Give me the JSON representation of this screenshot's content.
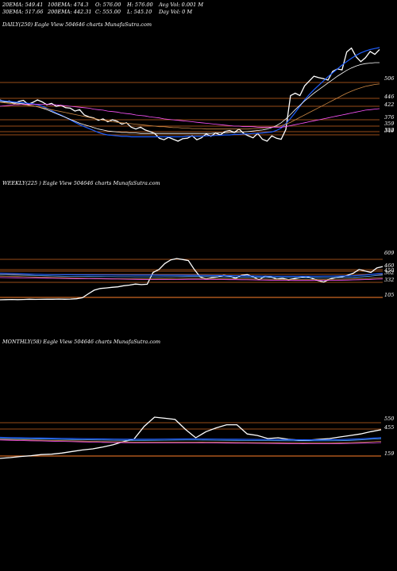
{
  "header": {
    "row1": [
      "20EMA: 549.41",
      "100EMA: 474.3",
      "O: 576.00",
      "H: 576.00",
      "Avg Vol: 0.001 M"
    ],
    "row2": [
      "30EMA: 517.66",
      "200EMA: 442.31",
      "C: 555.00",
      "L: 545.10",
      "Day Vol: 0  M"
    ]
  },
  "chart_data": [
    {
      "type": "line",
      "title": "DAILY(250) Eagle  View  504646  charts MunafaSutra.com",
      "level_labels": [
        "506",
        "446",
        "422",
        "376",
        "359",
        "352",
        "349"
      ],
      "level_lines": [
        506,
        446,
        422,
        376,
        359,
        352,
        349
      ],
      "series": [
        {
          "color": "#ffffff",
          "values": [
            441,
            437,
            439,
            433,
            438,
            440,
            432,
            436,
            441,
            437,
            431,
            434,
            428,
            430,
            425,
            424,
            418,
            421,
            410,
            406,
            404,
            399,
            402,
            396,
            400,
            397,
            391,
            394,
            385,
            381,
            385,
            379,
            376,
            372,
            362,
            359,
            364,
            360,
            356,
            361,
            362,
            367,
            359,
            363,
            371,
            366,
            373,
            369,
            376,
            378,
            374,
            381,
            372,
            367,
            363,
            372,
            360,
            356,
            367,
            362,
            360,
            380,
            450,
            455,
            450,
            470,
            480,
            490,
            487,
            485,
            482,
            500,
            505,
            503,
            540,
            548,
            530,
            520,
            528,
            541,
            535,
            545
          ]
        },
        {
          "color": "#1f5fff",
          "values": [
            440,
            439,
            438,
            437,
            436,
            435,
            434,
            433,
            431,
            428,
            424,
            419,
            414,
            410,
            405,
            400,
            395,
            390,
            386,
            382,
            378,
            374,
            371,
            369,
            368,
            367,
            366,
            366,
            365,
            365,
            365,
            365,
            365,
            365,
            365,
            365,
            365,
            365,
            365,
            365,
            366,
            366,
            366,
            366,
            367,
            367,
            368,
            368,
            369,
            369,
            370,
            370,
            371,
            371,
            372,
            372,
            373,
            374,
            375,
            378,
            383,
            392,
            403,
            415,
            428,
            441,
            452,
            462,
            471,
            480,
            489,
            497,
            505,
            513,
            520,
            527,
            533,
            538,
            542,
            545,
            547,
            549
          ]
        },
        {
          "color": "#ffffff",
          "values": [
            438,
            437,
            436,
            435,
            434,
            433,
            431,
            429,
            427,
            424,
            421,
            417,
            413,
            409,
            405,
            401,
            397,
            393,
            390,
            387,
            384,
            381,
            379,
            377,
            376,
            375,
            374,
            374,
            373,
            373,
            372,
            372,
            372,
            372,
            372,
            372,
            372,
            372,
            372,
            372,
            372,
            372,
            372,
            372,
            372,
            372,
            373,
            373,
            373,
            374,
            374,
            375,
            375,
            376,
            377,
            378,
            379,
            381,
            384,
            388,
            394,
            402,
            411,
            421,
            430,
            439,
            447,
            455,
            462,
            469,
            476,
            483,
            490,
            496,
            502,
            507,
            511,
            514,
            516,
            517,
            518,
            518
          ]
        },
        {
          "color": "#cc8844",
          "values": [
            436,
            435,
            434,
            433,
            432,
            431,
            430,
            429,
            427,
            425,
            423,
            421,
            419,
            417,
            415,
            413,
            411,
            409,
            407,
            405,
            403,
            401,
            399,
            398,
            396,
            395,
            394,
            393,
            392,
            391,
            390,
            389,
            388,
            387,
            386,
            386,
            385,
            384,
            384,
            383,
            383,
            382,
            382,
            382,
            381,
            381,
            381,
            381,
            381,
            381,
            381,
            381,
            381,
            381,
            382,
            382,
            383,
            384,
            385,
            386,
            388,
            391,
            395,
            400,
            405,
            410,
            415,
            420,
            425,
            430,
            435,
            440,
            445,
            450,
            455,
            459,
            463,
            466,
            469,
            471,
            473,
            474
          ]
        },
        {
          "color": "#ff55ff",
          "values": [
            428,
            429,
            430,
            431,
            431,
            432,
            432,
            432,
            432,
            432,
            432,
            431,
            431,
            430,
            429,
            428,
            427,
            426,
            425,
            424,
            422,
            421,
            420,
            418,
            417,
            416,
            414,
            413,
            412,
            410,
            409,
            408,
            406,
            405,
            404,
            402,
            401,
            400,
            399,
            398,
            397,
            396,
            395,
            394,
            393,
            392,
            391,
            390,
            389,
            388,
            387,
            387,
            386,
            386,
            386,
            385,
            385,
            385,
            385,
            385,
            385,
            386,
            388,
            390,
            392,
            394,
            396,
            398,
            400,
            402,
            404,
            406,
            408,
            410,
            412,
            414,
            416,
            418,
            420,
            421,
            422,
            423
          ]
        }
      ]
    },
    {
      "type": "line",
      "title": "WEEKLY(225                                  ) Eagle  View  504646  charts MunafaSutra.com",
      "level_labels": [
        "609",
        "460",
        "450",
        "362",
        "332",
        "105"
      ],
      "level_lines": [
        609,
        460,
        450,
        362,
        332,
        105
      ],
      "series": [
        {
          "color": "#ffffff",
          "values": [
            110,
            112,
            114,
            112,
            114,
            117,
            115,
            116,
            118,
            117,
            120,
            118,
            120,
            124,
            138,
            190,
            240,
            262,
            270,
            278,
            285,
            300,
            308,
            322,
            315,
            320,
            480,
            520,
            600,
            650,
            668,
            655,
            640,
            520,
            420,
            390,
            410,
            420,
            440,
            430,
            400,
            440,
            450,
            420,
            380,
            430,
            420,
            390,
            400,
            380,
            395,
            410,
            425,
            400,
            370,
            350,
            390,
            410,
            420,
            440,
            470,
            520,
            500,
            480,
            540,
            560
          ]
        },
        {
          "color": "#1f5fff",
          "values": [
            470,
            468,
            466,
            463,
            460,
            458,
            455,
            453,
            451,
            450,
            450,
            449,
            449,
            448,
            448,
            447,
            447,
            446,
            446,
            446,
            445,
            445,
            445,
            444,
            444,
            444,
            444,
            443,
            443,
            443,
            443,
            443,
            442,
            442,
            441,
            440,
            439,
            438,
            437,
            436,
            435,
            434,
            433,
            432,
            431,
            430,
            430,
            429,
            429,
            429,
            428,
            428,
            428,
            429,
            429,
            430,
            430,
            431,
            432,
            433,
            435,
            440,
            445,
            452,
            460,
            465
          ]
        },
        {
          "color": "#55aaff",
          "values": [
            450,
            448,
            446,
            444,
            442,
            440,
            438,
            436,
            434,
            432,
            430,
            428,
            427,
            426,
            425,
            424,
            423,
            423,
            422,
            422,
            421,
            421,
            421,
            420,
            420,
            420,
            420,
            420,
            421,
            421,
            422,
            423,
            424,
            424,
            424,
            423,
            422,
            421,
            420,
            419,
            418,
            417,
            416,
            415,
            414,
            413,
            412,
            411,
            410,
            410,
            409,
            409,
            408,
            408,
            408,
            409,
            409,
            410,
            411,
            412,
            414,
            418,
            423,
            430,
            438,
            445
          ]
        },
        {
          "color": "#cc8844",
          "values": [
            430,
            428,
            426,
            424,
            422,
            420,
            418,
            416,
            414,
            412,
            410,
            408,
            406,
            404,
            402,
            400,
            398,
            396,
            395,
            394,
            394,
            394,
            394,
            394,
            394,
            394,
            395,
            396,
            397,
            398,
            399,
            400,
            400,
            400,
            400,
            399,
            398,
            397,
            396,
            395,
            394,
            393,
            392,
            391,
            390,
            389,
            388,
            387,
            386,
            385,
            385,
            385,
            385,
            385,
            386,
            386,
            387,
            388,
            389,
            390,
            392,
            395,
            398,
            402,
            406,
            410
          ]
        },
        {
          "color": "#ff55ff",
          "values": [
            410,
            409,
            408,
            407,
            406,
            405,
            404,
            403,
            402,
            401,
            400,
            399,
            398,
            397,
            396,
            395,
            394,
            393,
            392,
            391,
            390,
            389,
            388,
            387,
            386,
            385,
            384,
            384,
            384,
            384,
            385,
            386,
            387,
            387,
            387,
            386,
            385,
            384,
            383,
            382,
            381,
            380,
            379,
            378,
            377,
            376,
            375,
            374,
            373,
            372,
            371,
            371,
            371,
            371,
            372,
            372,
            373,
            374,
            375,
            376,
            378,
            380,
            383,
            386,
            389,
            392
          ]
        }
      ]
    },
    {
      "type": "line",
      "title": "MONTHLY(58) Eagle  View  504646  charts MunafaSutra.com",
      "level_labels": [
        "550",
        "455",
        "159"
      ],
      "level_lines": [
        550,
        455,
        159
      ],
      "series": [
        {
          "color": "#ffffff",
          "values": [
            180,
            190,
            205,
            215,
            230,
            235,
            250,
            270,
            290,
            305,
            330,
            360,
            400,
            430,
            600,
            720,
            705,
            690,
            560,
            450,
            530,
            580,
            620,
            620,
            500,
            480,
            440,
            450,
            430,
            420,
            420,
            430,
            440,
            460,
            480,
            500,
            530,
            555
          ]
        },
        {
          "color": "#1f5fff",
          "values": [
            455,
            452,
            450,
            448,
            446,
            444,
            442,
            440,
            438,
            436,
            434,
            432,
            431,
            430,
            430,
            431,
            432,
            433,
            434,
            434,
            433,
            432,
            431,
            430,
            429,
            428,
            427,
            426,
            425,
            424,
            423,
            423,
            424,
            426,
            430,
            436,
            444,
            452
          ]
        },
        {
          "color": "#55aaff",
          "values": [
            440,
            438,
            436,
            434,
            432,
            430,
            428,
            426,
            424,
            422,
            420,
            418,
            417,
            416,
            416,
            417,
            418,
            419,
            420,
            420,
            419,
            418,
            417,
            416,
            415,
            414,
            413,
            412,
            411,
            410,
            409,
            409,
            410,
            412,
            416,
            422,
            430,
            438
          ]
        },
        {
          "color": "#cc8844",
          "values": [
            430,
            427,
            424,
            421,
            418,
            415,
            412,
            409,
            406,
            403,
            400,
            398,
            396,
            394,
            393,
            393,
            393,
            393,
            393,
            393,
            392,
            391,
            390,
            389,
            388,
            387,
            386,
            385,
            384,
            383,
            382,
            382,
            383,
            385,
            388,
            392,
            398,
            404
          ]
        },
        {
          "color": "#ff55ff",
          "values": [
            420,
            417,
            414,
            411,
            408,
            405,
            402,
            399,
            396,
            393,
            390,
            388,
            386,
            384,
            383,
            383,
            383,
            383,
            383,
            383,
            382,
            381,
            380,
            379,
            378,
            377,
            376,
            375,
            374,
            373,
            372,
            372,
            373,
            374,
            376,
            379,
            383,
            388
          ]
        }
      ]
    }
  ]
}
